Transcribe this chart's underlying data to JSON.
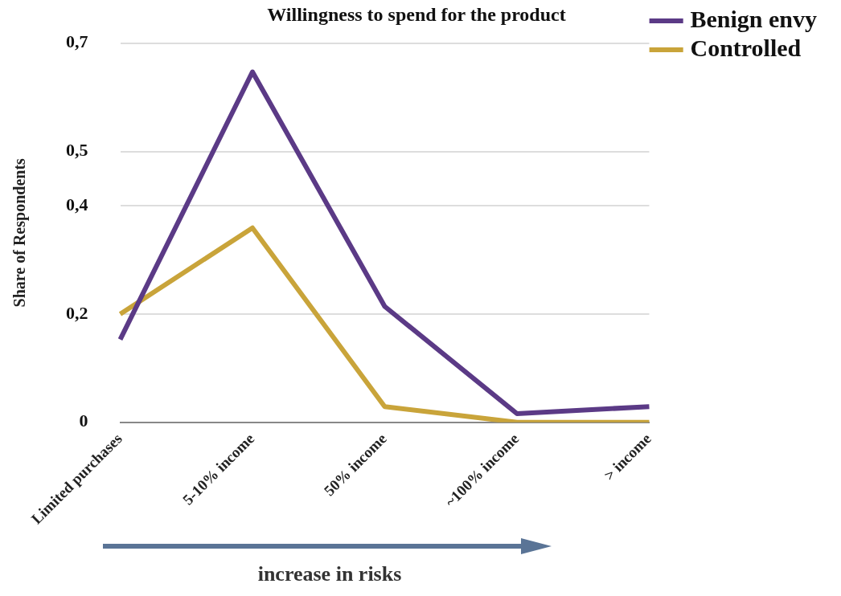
{
  "chart_data": {
    "type": "line",
    "title": "Willingness to spend for the product",
    "xlabel": "increase in risks",
    "ylabel": "Share of Respondents",
    "categories": [
      "Limited purchases",
      "5-10% income",
      "50% income",
      "~100% income",
      "> income"
    ],
    "series": [
      {
        "name": "Benign envy",
        "color": "#5b3a86",
        "values": [
          0.153,
          0.647,
          0.214,
          0.016,
          0.029
        ]
      },
      {
        "name": "Controlled",
        "color": "#c9a43a",
        "values": [
          0.2,
          0.359,
          0.029,
          0,
          0
        ]
      }
    ],
    "ylim": [
      0,
      0.7
    ],
    "yticks": [
      0,
      {
        "value": 0.2,
        "label": "0,2"
      },
      {
        "value": 0.4,
        "label": "0,4"
      },
      {
        "value": 0.5,
        "label": "0,5"
      },
      {
        "value": 0.7,
        "label": "0,7"
      }
    ],
    "grid": "y",
    "legend": "top right",
    "marker": "none",
    "line_style": "solid"
  }
}
